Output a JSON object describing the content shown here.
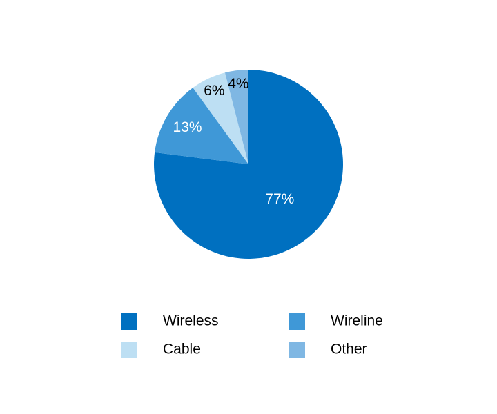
{
  "chart_data": {
    "type": "pie",
    "categories": [
      "Wireless",
      "Wireline",
      "Cable",
      "Other"
    ],
    "values": [
      77,
      13,
      6,
      4
    ],
    "value_labels": [
      "77%",
      "13%",
      "6%",
      "4%"
    ],
    "colors": [
      "#0070c0",
      "#3f98d7",
      "#bddff3",
      "#7fb7e3"
    ]
  }
}
